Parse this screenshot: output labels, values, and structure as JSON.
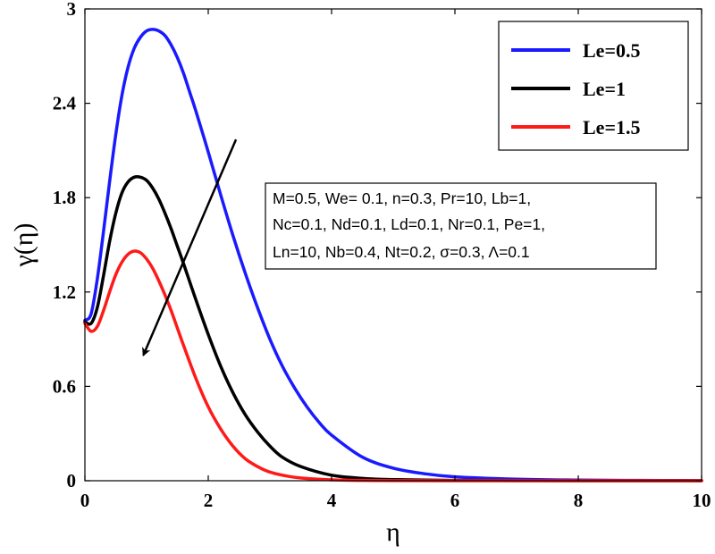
{
  "chart_data": {
    "type": "line",
    "xlabel": "η",
    "ylabel": "γ(η)",
    "xlim": [
      0,
      10
    ],
    "ylim": [
      0,
      3
    ],
    "xticks": [
      "0",
      "2",
      "4",
      "6",
      "8",
      "10"
    ],
    "yticks": [
      "0",
      "0.6",
      "1.2",
      "1.8",
      "2.4",
      "3"
    ],
    "legend_position": "top-right",
    "grid": false,
    "series": [
      {
        "name": "Le=0.5",
        "color": "#1a1aff",
        "x": [
          0,
          0.1,
          0.2,
          0.3,
          0.4,
          0.5,
          0.6,
          0.7,
          0.8,
          0.9,
          1.0,
          1.1,
          1.2,
          1.3,
          1.4,
          1.5,
          1.6,
          1.7,
          1.8,
          2.0,
          2.2,
          2.4,
          2.6,
          2.8,
          3.0,
          3.2,
          3.4,
          3.6,
          3.8,
          4.0,
          4.5,
          5.0,
          5.5,
          6.0,
          7.0,
          8.0,
          9.0,
          10.0
        ],
        "y": [
          1.02,
          1.06,
          1.28,
          1.58,
          1.9,
          2.2,
          2.45,
          2.63,
          2.75,
          2.82,
          2.86,
          2.87,
          2.86,
          2.83,
          2.77,
          2.69,
          2.59,
          2.47,
          2.35,
          2.09,
          1.82,
          1.56,
          1.32,
          1.1,
          0.9,
          0.73,
          0.59,
          0.47,
          0.37,
          0.29,
          0.15,
          0.08,
          0.045,
          0.025,
          0.01,
          0.004,
          0.002,
          0.001
        ]
      },
      {
        "name": "Le=1",
        "color": "#000000",
        "x": [
          0,
          0.1,
          0.2,
          0.3,
          0.4,
          0.5,
          0.6,
          0.7,
          0.8,
          0.9,
          1.0,
          1.1,
          1.2,
          1.3,
          1.4,
          1.5,
          1.6,
          1.8,
          2.0,
          2.2,
          2.4,
          2.6,
          2.8,
          3.0,
          3.2,
          3.5,
          4.0,
          4.5,
          5.0,
          6.0,
          7.0,
          8.0,
          10.0
        ],
        "y": [
          1.01,
          1.0,
          1.1,
          1.3,
          1.52,
          1.7,
          1.83,
          1.9,
          1.93,
          1.93,
          1.91,
          1.86,
          1.79,
          1.7,
          1.6,
          1.49,
          1.38,
          1.15,
          0.93,
          0.73,
          0.56,
          0.42,
          0.31,
          0.22,
          0.15,
          0.09,
          0.035,
          0.015,
          0.007,
          0.002,
          0.001,
          0.0,
          0.0
        ]
      },
      {
        "name": "Le=1.5",
        "color": "#ff1a1a",
        "x": [
          0,
          0.1,
          0.2,
          0.3,
          0.4,
          0.5,
          0.6,
          0.7,
          0.8,
          0.9,
          1.0,
          1.1,
          1.2,
          1.3,
          1.4,
          1.5,
          1.6,
          1.8,
          2.0,
          2.2,
          2.4,
          2.6,
          2.8,
          3.0,
          3.3,
          3.6,
          4.0,
          4.5,
          5.0,
          6.0,
          8.0,
          10.0
        ],
        "y": [
          1.0,
          0.95,
          0.98,
          1.08,
          1.2,
          1.31,
          1.39,
          1.44,
          1.46,
          1.45,
          1.41,
          1.35,
          1.27,
          1.18,
          1.08,
          0.97,
          0.86,
          0.65,
          0.47,
          0.33,
          0.22,
          0.14,
          0.09,
          0.055,
          0.028,
          0.014,
          0.006,
          0.002,
          0.001,
          0.0,
          0.0,
          0.0
        ]
      }
    ],
    "annotations": {
      "params": [
        "M=0.5,  We= 0.1, n=0.3,  Pr=10,  Lb=1,",
        "Nc=0.1, Nd=0.1, Ld=0.1, Nr=0.1, Pe=1,",
        "Ln=10, Nb=0.4, Nt=0.2,  σ=0.3, Λ=0.1"
      ],
      "arrow": {
        "from": [
          2.45,
          2.17
        ],
        "to": [
          0.95,
          0.8
        ],
        "direction": "increasing Le"
      }
    }
  }
}
